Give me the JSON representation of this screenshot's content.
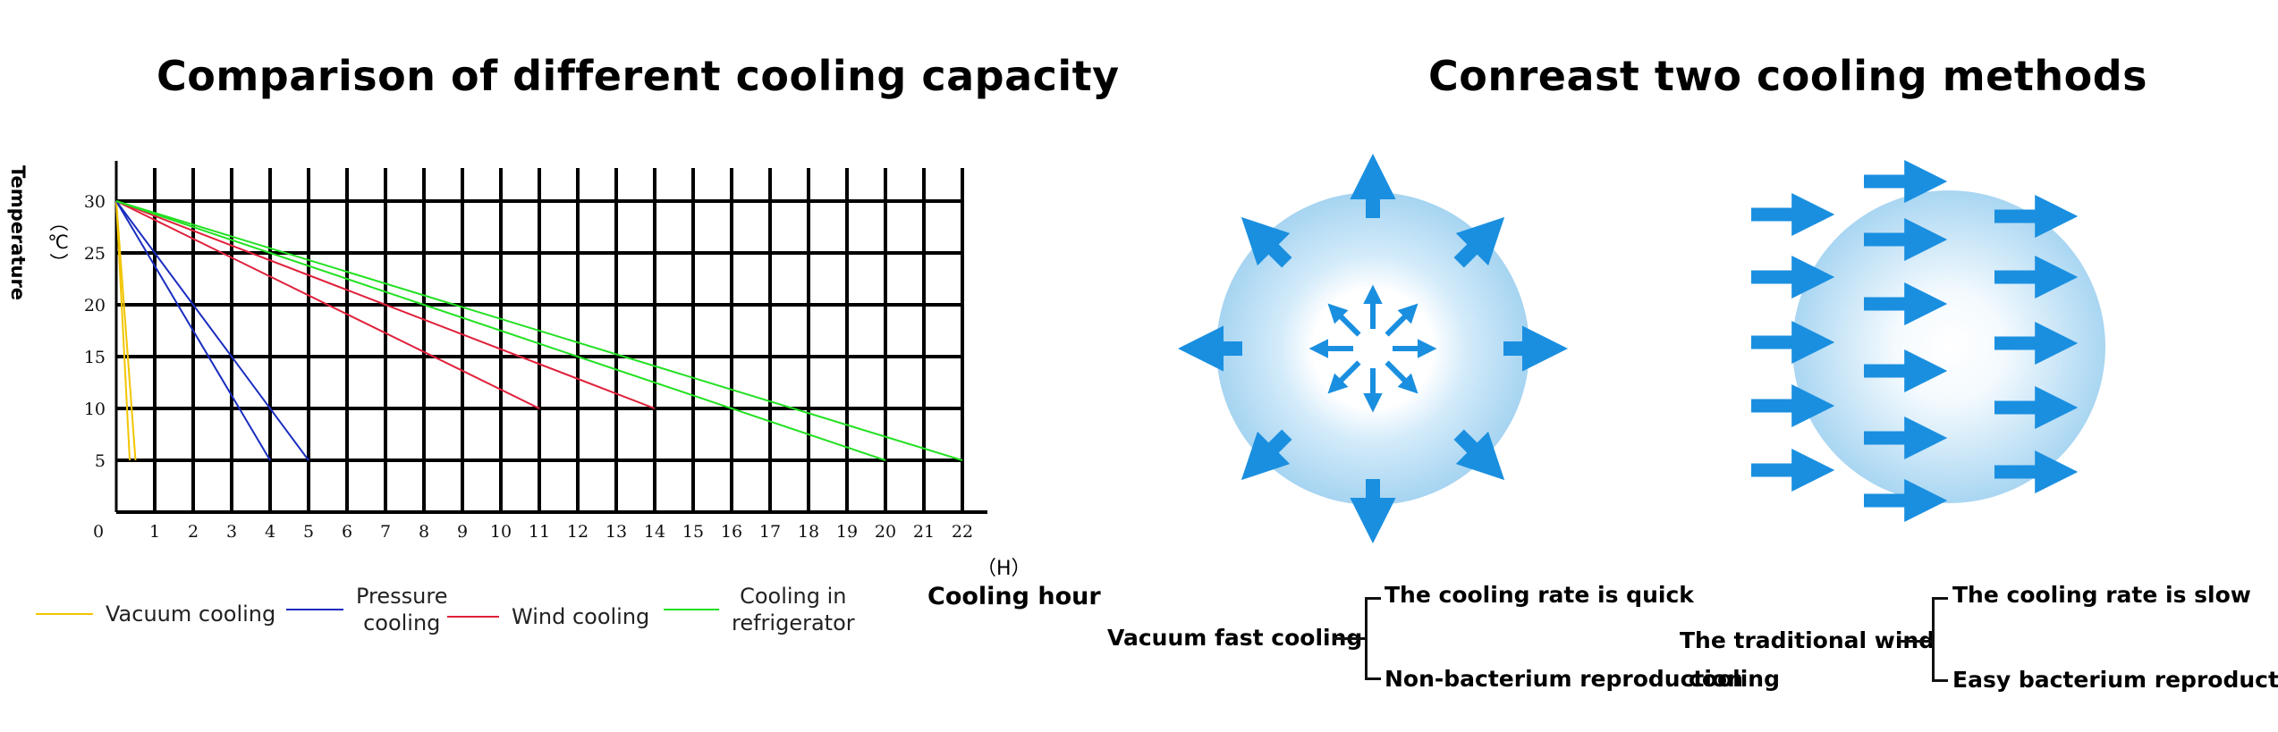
{
  "left_title": "Comparison of different cooling capacity",
  "right_title": "Conreast two cooling methods",
  "chart_data": {
    "type": "line",
    "title": "Comparison of different cooling capacity",
    "xlabel": "Cooling hour",
    "xunit": "（H）",
    "ylabel": "Temperature",
    "yunit": "（℃）",
    "xlim": [
      0,
      22
    ],
    "ylim": [
      0,
      30
    ],
    "x_ticks": [
      "0",
      "1",
      "2",
      "3",
      "4",
      "5",
      "6",
      "7",
      "8",
      "9",
      "10",
      "11",
      "12",
      "13",
      "14",
      "15",
      "16",
      "17",
      "18",
      "19",
      "20",
      "21",
      "22"
    ],
    "y_ticks": [
      "5",
      "10",
      "15",
      "20",
      "25",
      "30"
    ],
    "grid": true,
    "series": [
      {
        "name": "Vacuum cooling",
        "color": "#f2c500",
        "lines": [
          {
            "x": [
              0,
              0.35
            ],
            "y": [
              30,
              5
            ]
          },
          {
            "x": [
              0,
              0.5
            ],
            "y": [
              30,
              5
            ]
          }
        ]
      },
      {
        "name": "Pressure cooling",
        "color": "#1a2dbf",
        "lines": [
          {
            "x": [
              0,
              4
            ],
            "y": [
              30,
              5
            ]
          },
          {
            "x": [
              0,
              5
            ],
            "y": [
              30,
              5
            ]
          }
        ]
      },
      {
        "name": "Wind cooling",
        "color": "#e0203a",
        "lines": [
          {
            "x": [
              0,
              11
            ],
            "y": [
              30,
              10
            ]
          },
          {
            "x": [
              0,
              14
            ],
            "y": [
              30,
              10
            ]
          }
        ]
      },
      {
        "name": "Cooling in refrigerator",
        "color": "#22e022",
        "lines": [
          {
            "x": [
              0,
              20
            ],
            "y": [
              30,
              5
            ]
          },
          {
            "x": [
              0,
              22
            ],
            "y": [
              30,
              5
            ]
          }
        ]
      }
    ]
  },
  "legend": {
    "vacuum": "Vacuum cooling",
    "pressure_line1": "Pressure",
    "pressure_line2": "cooling",
    "wind": "Wind cooling",
    "fridge_line1": "Cooling in",
    "fridge_line2": "refrigerator"
  },
  "methods": {
    "vacuum": {
      "name": "Vacuum fast cooling",
      "point1": "The cooling rate is quick",
      "point2": "Non-bacterium reproduction"
    },
    "traditional": {
      "name_line1": "The traditional wind",
      "name_line2": "cooling",
      "point1": "The cooling rate is slow",
      "point2": "Easy bacterium reproduction"
    }
  },
  "colors": {
    "arrow": "#1a8fe0",
    "sphere_edge": "#a9d6f2",
    "sphere_center": "#ffffff"
  }
}
